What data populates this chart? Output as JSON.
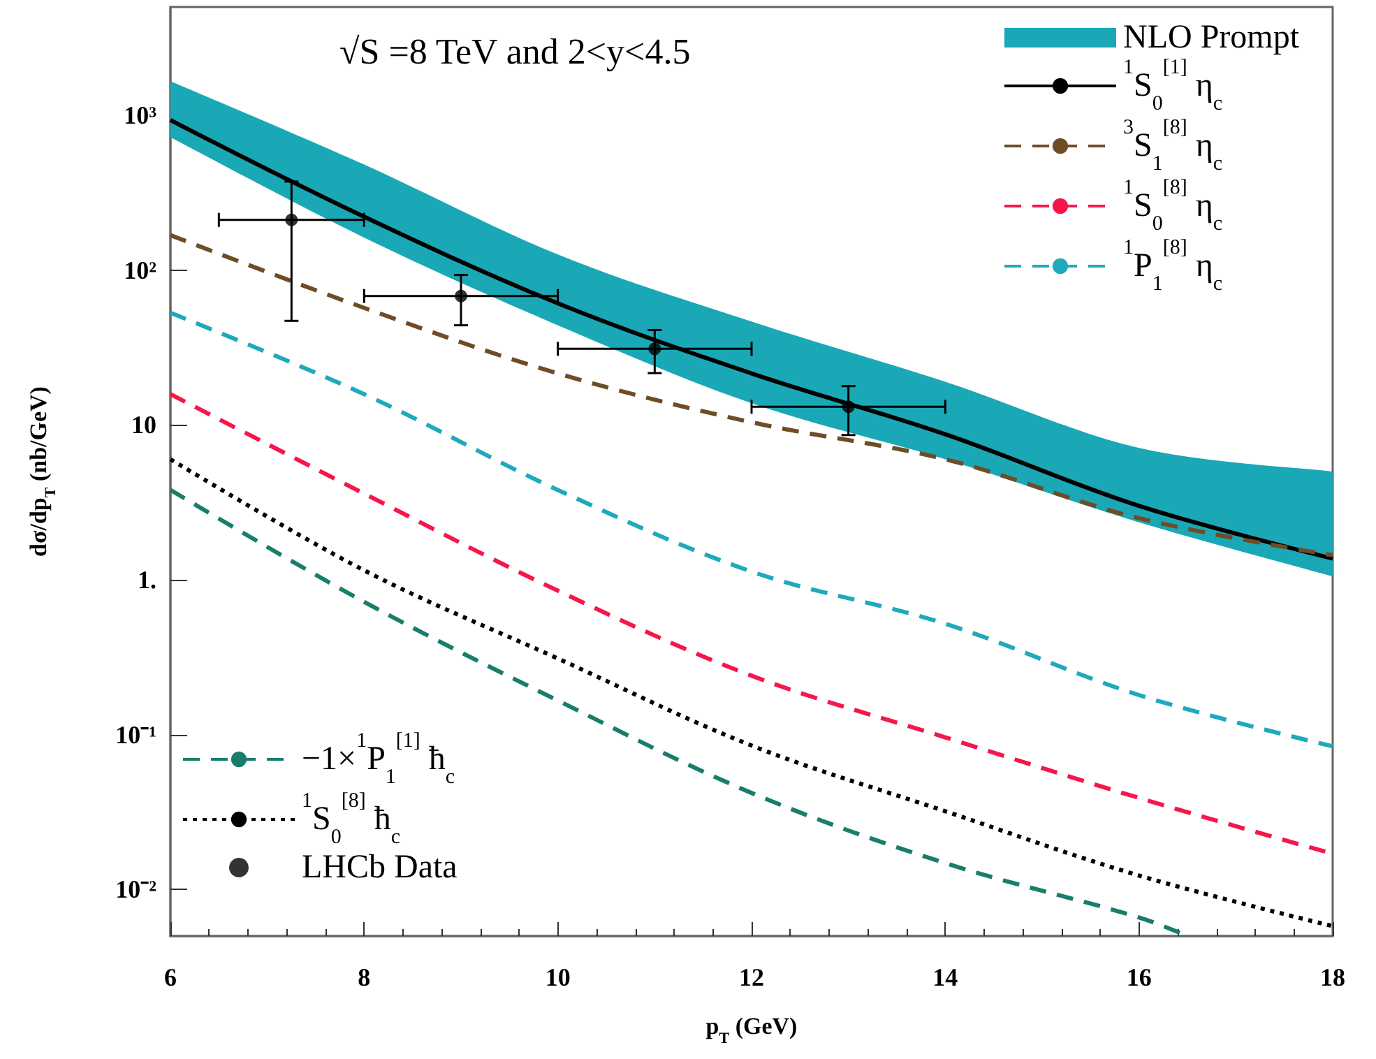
{
  "chart_data": {
    "type": "line",
    "xlabel": "p$_{T}$ (GeV)",
    "ylabel": "dσ/dp$_{T}$ (nb/GeV)",
    "annotations": [
      "√S =8 TeV and 2<y<4.5"
    ],
    "xlim": [
      6,
      18
    ],
    "xticks": [
      6,
      8,
      10,
      12,
      14,
      16,
      18
    ],
    "ylim": [
      0.005,
      5000
    ],
    "yticks": [
      {
        "value": 0.01,
        "label": "10⁻²"
      },
      {
        "value": 0.1,
        "label": "10⁻¹"
      },
      {
        "value": 1,
        "label": "1."
      },
      10,
      {
        "value": 100,
        "label": "10²"
      },
      {
        "value": 1000,
        "label": "10³"
      }
    ],
    "log": "y",
    "grid": false,
    "legend": "top right",
    "series": [
      {
        "name": "NLO Prompt",
        "type": "area",
        "color": "#1aa8b6",
        "x": [
          6,
          8,
          10,
          12,
          14,
          16,
          18
        ],
        "values": [
          null,
          null,
          null,
          null,
          null,
          null,
          null
        ],
        "lower": [
          720,
          162,
          44,
          13.8,
          6.0,
          2.35,
          1.05
        ],
        "upper": [
          1660,
          480,
          126,
          46.5,
          19,
          7.1,
          5.0
        ]
      },
      {
        "name": "$^{1}$S$_{0}$$^{[1]}$ η$_{c}$",
        "color": "#000000",
        "line_style": "solid",
        "marker": "none",
        "x": [
          6,
          8,
          10,
          12,
          14,
          16,
          18
        ],
        "values": [
          930,
          221,
          61,
          21.5,
          8.7,
          3.0,
          1.37
        ]
      },
      {
        "name": "$^{3}$S$_{1}$$^{[8]}$ η$_{c}$",
        "color": "#6e4d26",
        "line_style": "dashed",
        "marker": "none",
        "x": [
          6,
          8,
          10,
          12,
          14,
          16,
          18
        ],
        "values": [
          168,
          57,
          21.5,
          10.4,
          6.0,
          2.5,
          1.44
        ]
      },
      {
        "name": "$^{1}$S$_{0}$$^{[8]}$ η$_{c}$",
        "color": "#f5174a",
        "line_style": "dashed",
        "marker": "none",
        "x": [
          6,
          8,
          10,
          12,
          14,
          16,
          18
        ],
        "values": [
          15.8,
          3.6,
          0.85,
          0.24,
          0.096,
          0.039,
          0.017
        ]
      },
      {
        "name": "$^{1}$P$_{1}$$^{[8]}$ η$_{c}$",
        "color": "#1ea9bc",
        "line_style": "dashed",
        "marker": "none",
        "x": [
          6,
          8,
          10,
          12,
          14,
          16,
          18
        ],
        "values": [
          53,
          15.8,
          3.8,
          1.13,
          0.52,
          0.18,
          0.084
        ]
      },
      {
        "name": "−1×$^{1}$P$_{1}$$^{[1]}$ ħ$_{c}$",
        "color": "#1a7d6c",
        "line_style": "dashed",
        "marker": "none",
        "x": [
          6,
          8,
          10,
          12,
          14,
          16,
          16.5
        ],
        "values": [
          3.8,
          0.72,
          0.166,
          0.042,
          0.0148,
          0.0066,
          0.005
        ]
      },
      {
        "name": "$^{1}$S$_{0}$$^{[8]}$ ħ$_{c}$",
        "color": "#000000",
        "line_style": "dotted",
        "marker": "none",
        "x": [
          6,
          8,
          10,
          12,
          14,
          16,
          18
        ],
        "values": [
          6.0,
          1.15,
          0.31,
          0.085,
          0.032,
          0.0123,
          0.0058
        ]
      },
      {
        "name": "LHCb Data",
        "type": "scatter",
        "color": "#000000",
        "marker": "circle",
        "x": [
          7.25,
          9,
          11,
          13
        ],
        "values": [
          211,
          68,
          31,
          13.1
        ],
        "errors": [
          [
            47,
            373
          ],
          [
            44,
            93
          ],
          [
            21.6,
            41
          ],
          [
            8.6,
            17.8
          ]
        ],
        "xerrors": [
          [
            6.5,
            8
          ],
          [
            8,
            10
          ],
          [
            10,
            12
          ],
          [
            12,
            14
          ]
        ]
      }
    ]
  }
}
